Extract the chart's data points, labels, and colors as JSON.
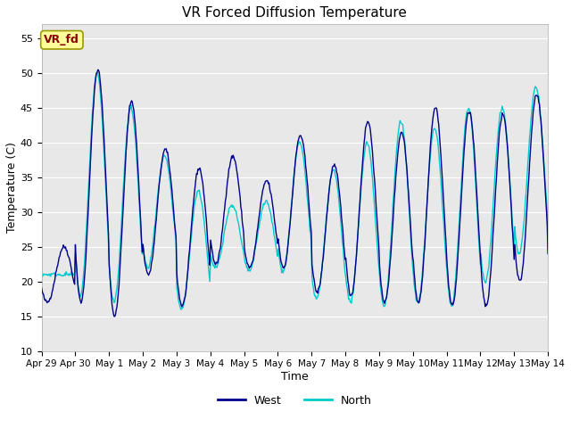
{
  "title": "VR Forced Diffusion Temperature",
  "xlabel": "Time",
  "ylabel": "Temperature (C)",
  "ylim": [
    10,
    57
  ],
  "yticks": [
    10,
    15,
    20,
    25,
    30,
    35,
    40,
    45,
    50,
    55
  ],
  "fig_bg_color": "#ffffff",
  "plot_bg_color": "#e8e8e8",
  "west_color": "#00008B",
  "north_color": "#00CCCC",
  "west_label": "West",
  "north_label": "North",
  "annotation_text": "VR_fd",
  "annotation_bg": "#FFFF99",
  "annotation_border": "#999900",
  "annotation_text_color": "#8B0000",
  "x_tick_labels": [
    "Apr 29",
    "Apr 30",
    "May 1",
    "May 2",
    "May 3",
    "May 4",
    "May 5",
    "May 6",
    "May 7",
    "May 8",
    "May 9",
    "May 10",
    "May 11",
    "May 12",
    "May 13",
    "May 14"
  ],
  "west_peaks": [
    25,
    50.5,
    46,
    39,
    36.3,
    38,
    34.5,
    41,
    36.7,
    43,
    41.5,
    45,
    44.5,
    44,
    47,
    24
  ],
  "west_mins": [
    17,
    17,
    15,
    21,
    16.5,
    22.5,
    22,
    22,
    18.5,
    18,
    17,
    17,
    16.5,
    16.5,
    20,
    24
  ],
  "north_peaks": [
    21,
    50,
    45,
    38,
    33,
    31,
    31.5,
    40,
    36,
    40,
    43,
    42,
    45,
    45,
    48,
    24
  ],
  "north_mins": [
    21,
    18,
    17,
    22,
    16,
    22,
    21.5,
    21.5,
    17.5,
    17,
    16.5,
    17,
    16.5,
    20,
    24,
    24
  ]
}
